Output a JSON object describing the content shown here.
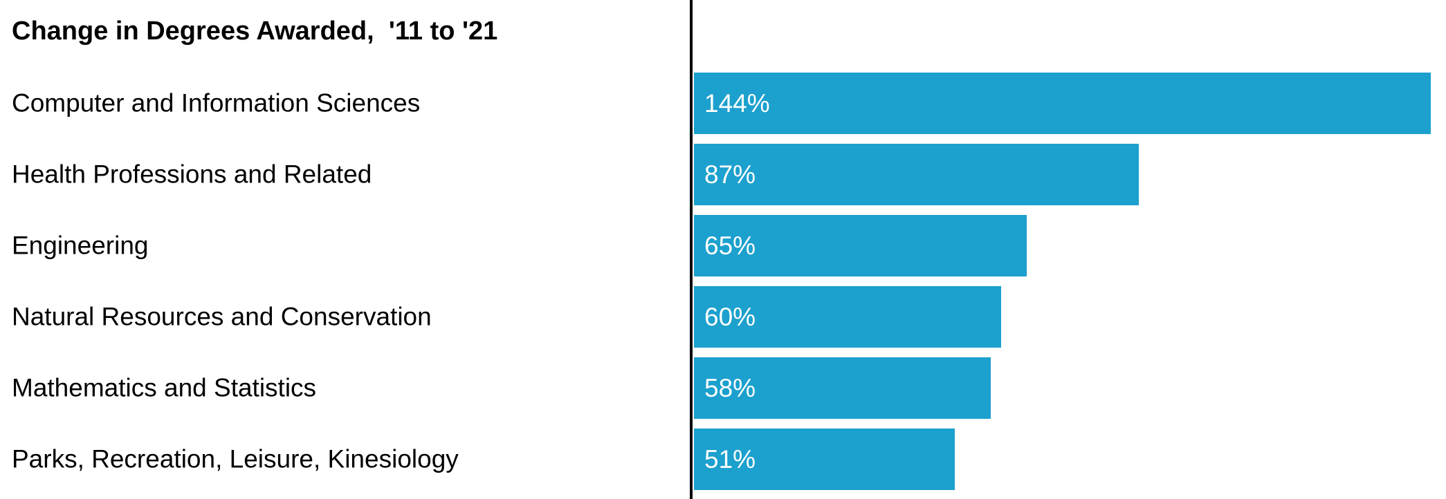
{
  "chart_data": {
    "type": "bar",
    "orientation": "horizontal",
    "title": "Change in Degrees Awarded,  '11 to '21",
    "categories": [
      "Computer and Information Sciences",
      "Health Professions and Related",
      "Engineering",
      "Natural Resources and Conservation",
      "Mathematics and Statistics",
      "Parks, Recreation, Leisure, Kinesiology"
    ],
    "values": [
      144,
      87,
      65,
      60,
      58,
      51
    ],
    "value_labels": [
      "144%",
      "87%",
      "65%",
      "60%",
      "58%",
      "51%"
    ],
    "xlabel": "",
    "ylabel": "",
    "xlim": [
      0,
      147
    ],
    "grid": false,
    "legend": false,
    "value_label_position": "inside-left",
    "colors": {
      "bar": "#1CA0CE",
      "value_label": "#FFFFFF",
      "category_label": "#000000",
      "title": "#000000",
      "axis_line": "#000000",
      "background": "#FFFFFF"
    }
  }
}
